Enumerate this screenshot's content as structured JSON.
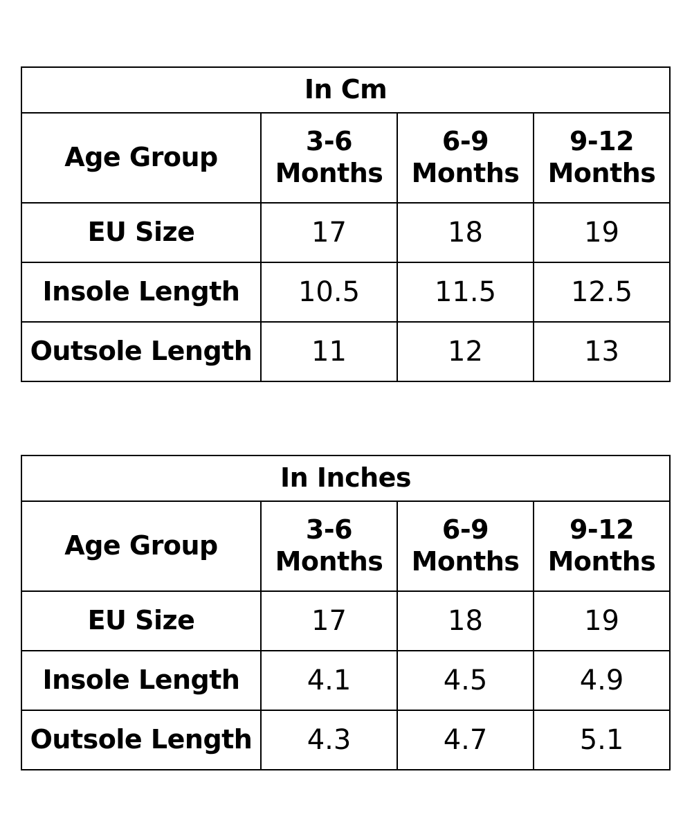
{
  "tables": [
    {
      "unit_title": "In Cm",
      "header": {
        "label": "Age Group",
        "columns": [
          {
            "line1": "3-6",
            "line2": "Months"
          },
          {
            "line1": "6-9",
            "line2": "Months"
          },
          {
            "line1": "9-12",
            "line2": "Months"
          }
        ]
      },
      "rows": [
        {
          "label": "EU Size",
          "values": [
            "17",
            "18",
            "19"
          ]
        },
        {
          "label": "Insole Length",
          "values": [
            "10.5",
            "11.5",
            "12.5"
          ]
        },
        {
          "label": "Outsole Length",
          "values": [
            "11",
            "12",
            "13"
          ]
        }
      ]
    },
    {
      "unit_title": "In Inches",
      "header": {
        "label": "Age Group",
        "columns": [
          {
            "line1": "3-6",
            "line2": "Months"
          },
          {
            "line1": "6-9",
            "line2": "Months"
          },
          {
            "line1": "9-12",
            "line2": "Months"
          }
        ]
      },
      "rows": [
        {
          "label": "EU Size",
          "values": [
            "17",
            "18",
            "19"
          ]
        },
        {
          "label": "Insole Length",
          "values": [
            "4.1",
            "4.5",
            "4.9"
          ]
        },
        {
          "label": "Outsole Length",
          "values": [
            "4.3",
            "4.7",
            "5.1"
          ]
        }
      ]
    }
  ]
}
